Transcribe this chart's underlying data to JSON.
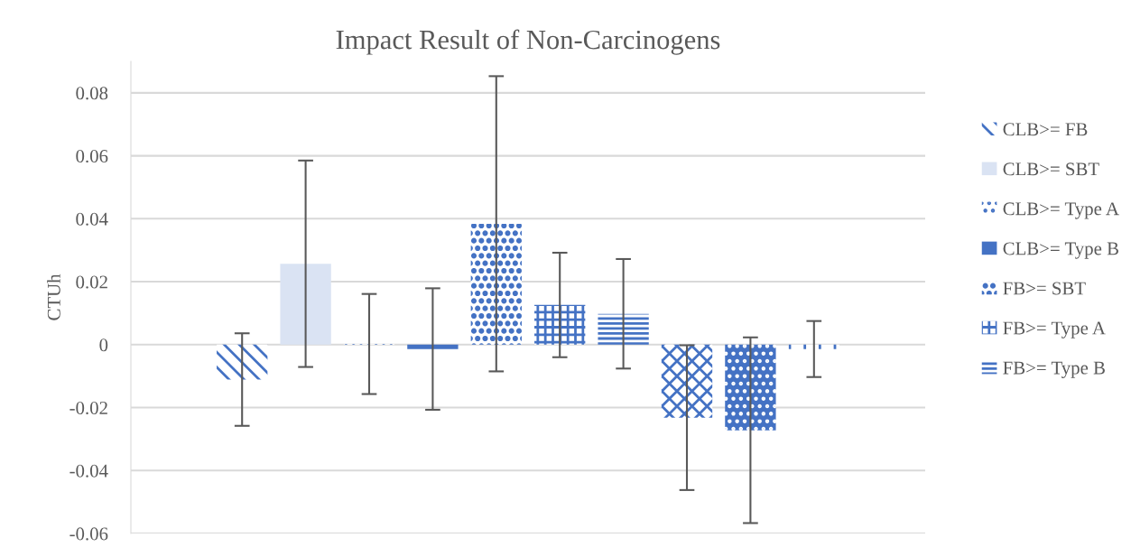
{
  "chart_data": {
    "type": "bar",
    "title": "Impact Result of Non-Carcinogens",
    "ylabel": "CTUh",
    "categories": [
      null
    ],
    "series": [
      {
        "name": "CLB>= FB",
        "color": "#4472c4",
        "values": [
          -0.0111
        ],
        "errors": [
          0.0147
        ]
      },
      {
        "name": "CLB>= SBT",
        "color": "#dae3f3",
        "values": [
          0.0257
        ],
        "errors": [
          0.0328
        ]
      },
      {
        "name": "CLB>= Type A",
        "color": "#4472c4",
        "values": [
          0.0002
        ],
        "errors": [
          0.0159
        ]
      },
      {
        "name": "CLB>= Type B",
        "color": "#4472c4",
        "values": [
          -0.0014
        ],
        "errors": [
          0.0193
        ]
      },
      {
        "name": "FB>= SBT",
        "color": "#4472c4",
        "values": [
          0.0384
        ],
        "errors": [
          0.0469
        ]
      },
      {
        "name": "FB>= Type A",
        "color": "#4472c4",
        "values": [
          0.0126
        ],
        "errors": [
          0.0166
        ]
      },
      {
        "name": "FB>= Type B",
        "color": "#4472c4",
        "values": [
          0.0098
        ],
        "errors": [
          0.0174
        ]
      },
      {
        "color": "#4472c4",
        "values": [
          -0.0232
        ],
        "errors": [
          0.023
        ]
      },
      {
        "color": "#4472c4",
        "values": [
          -0.0272
        ],
        "errors": [
          0.0295
        ]
      },
      {
        "color": "#4472c4",
        "values": [
          -0.0014
        ],
        "errors": [
          0.0089
        ]
      }
    ],
    "ylim": [
      -0.06,
      0.09
    ],
    "yticks": [
      -0.06,
      -0.04,
      -0.02,
      0,
      0.02,
      0.04,
      0.06,
      0.08
    ],
    "grid": "y",
    "legend": "right"
  }
}
